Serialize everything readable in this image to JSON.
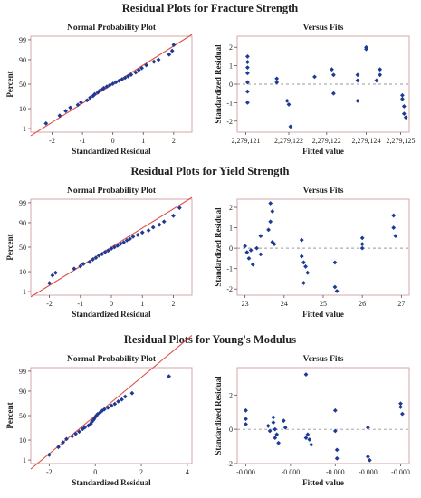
{
  "chart_data": [
    {
      "section_title": "Residual Plots for Fracture Strength",
      "panels": [
        {
          "type": "scatter",
          "kind": "probability",
          "title": "Normal Probability Plot",
          "xlabel": "Standardized Residual",
          "ylabel": "Percent",
          "xlim": [
            -2.7,
            2.6
          ],
          "xticks": [
            -2,
            -1,
            0,
            1,
            2
          ],
          "xtick_labels": [
            "-2",
            "-1",
            "0",
            "1",
            "2"
          ],
          "yticks": [
            1,
            10,
            50,
            90,
            99
          ],
          "ytick_labels": [
            "1",
            "10",
            "50",
            "90",
            "99"
          ],
          "line": {
            "x0": -2.7,
            "x1": 2.6
          },
          "points": [
            {
              "x": -2.2,
              "y": 2
            },
            {
              "x": -1.75,
              "y": 5
            },
            {
              "x": -1.55,
              "y": 8
            },
            {
              "x": -1.4,
              "y": 11
            },
            {
              "x": -1.15,
              "y": 14
            },
            {
              "x": -1.05,
              "y": 17
            },
            {
              "x": -0.85,
              "y": 20
            },
            {
              "x": -0.75,
              "y": 24
            },
            {
              "x": -0.65,
              "y": 27
            },
            {
              "x": -0.6,
              "y": 30
            },
            {
              "x": -0.5,
              "y": 33
            },
            {
              "x": -0.45,
              "y": 36
            },
            {
              "x": -0.35,
              "y": 39
            },
            {
              "x": -0.3,
              "y": 42
            },
            {
              "x": -0.2,
              "y": 45
            },
            {
              "x": -0.1,
              "y": 48
            },
            {
              "x": 0.0,
              "y": 51
            },
            {
              "x": 0.1,
              "y": 54
            },
            {
              "x": 0.2,
              "y": 57
            },
            {
              "x": 0.3,
              "y": 60
            },
            {
              "x": 0.4,
              "y": 63
            },
            {
              "x": 0.5,
              "y": 66
            },
            {
              "x": 0.6,
              "y": 69
            },
            {
              "x": 0.75,
              "y": 73
            },
            {
              "x": 0.85,
              "y": 77
            },
            {
              "x": 0.95,
              "y": 80
            },
            {
              "x": 1.1,
              "y": 84
            },
            {
              "x": 1.35,
              "y": 88
            },
            {
              "x": 1.5,
              "y": 90
            },
            {
              "x": 1.85,
              "y": 94
            },
            {
              "x": 1.95,
              "y": 96
            },
            {
              "x": 2.0,
              "y": 98
            }
          ]
        },
        {
          "type": "scatter",
          "kind": "fits",
          "title": "Versus Fits",
          "xlabel": "Fitted value",
          "ylabel": "Standardized Residual",
          "xlim": [
            0,
            5
          ],
          "ylim": [
            -2.6,
            2.6
          ],
          "yticks": [
            -2,
            -1,
            0,
            1,
            2
          ],
          "ytick_labels": [
            "-2",
            "-1",
            "0",
            "1",
            "2"
          ],
          "xticks": [
            0.25,
            1.5,
            2.6,
            3.75,
            4.75
          ],
          "xtick_labels": [
            "2,279,121",
            "2,279,122",
            "2,279,122",
            "2,279,124",
            "2,279,125"
          ],
          "points": [
            {
              "x": 0.3,
              "y": 1.5
            },
            {
              "x": 0.3,
              "y": 1.2
            },
            {
              "x": 0.3,
              "y": 0.9
            },
            {
              "x": 0.3,
              "y": 0.6
            },
            {
              "x": 0.3,
              "y": 0.1
            },
            {
              "x": 0.3,
              "y": -0.4
            },
            {
              "x": 0.3,
              "y": -1.0
            },
            {
              "x": 1.15,
              "y": 0.3
            },
            {
              "x": 1.15,
              "y": 0.1
            },
            {
              "x": 1.45,
              "y": -0.9
            },
            {
              "x": 1.5,
              "y": -1.1
            },
            {
              "x": 1.55,
              "y": -2.3
            },
            {
              "x": 2.25,
              "y": 0.4
            },
            {
              "x": 2.75,
              "y": 0.8
            },
            {
              "x": 2.8,
              "y": 0.5
            },
            {
              "x": 2.8,
              "y": -0.5
            },
            {
              "x": 3.5,
              "y": 0.5
            },
            {
              "x": 3.5,
              "y": 0.2
            },
            {
              "x": 3.5,
              "y": -0.9
            },
            {
              "x": 3.75,
              "y": 2.0
            },
            {
              "x": 3.75,
              "y": 1.9
            },
            {
              "x": 4.15,
              "y": 0.8
            },
            {
              "x": 4.15,
              "y": 0.5
            },
            {
              "x": 4.05,
              "y": 0.2
            },
            {
              "x": 4.8,
              "y": -0.6
            },
            {
              "x": 4.8,
              "y": -0.8
            },
            {
              "x": 4.85,
              "y": -1.2
            },
            {
              "x": 4.85,
              "y": -1.6
            },
            {
              "x": 4.9,
              "y": -1.8
            }
          ]
        }
      ]
    },
    {
      "section_title": "Residual Plots for Yield Strength",
      "panels": [
        {
          "type": "scatter",
          "kind": "probability",
          "title": "Normal Probability Plot",
          "xlabel": "Standardized Residual",
          "ylabel": "Percent",
          "xlim": [
            -2.6,
            2.6
          ],
          "xticks": [
            -2,
            -1,
            0,
            1,
            2
          ],
          "xtick_labels": [
            "-2",
            "-1",
            "0",
            "1",
            "2"
          ],
          "yticks": [
            1,
            10,
            50,
            90,
            99
          ],
          "ytick_labels": [
            "1",
            "10",
            "50",
            "90",
            "99"
          ],
          "line": {
            "x0": -2.6,
            "x1": 2.6
          },
          "points": [
            {
              "x": -2.0,
              "y": 3
            },
            {
              "x": -1.9,
              "y": 7
            },
            {
              "x": -1.8,
              "y": 9
            },
            {
              "x": -1.2,
              "y": 13
            },
            {
              "x": -1.0,
              "y": 16
            },
            {
              "x": -0.9,
              "y": 19
            },
            {
              "x": -0.7,
              "y": 22
            },
            {
              "x": -0.6,
              "y": 26
            },
            {
              "x": -0.5,
              "y": 29
            },
            {
              "x": -0.4,
              "y": 33
            },
            {
              "x": -0.3,
              "y": 36
            },
            {
              "x": -0.2,
              "y": 40
            },
            {
              "x": -0.1,
              "y": 43
            },
            {
              "x": 0.0,
              "y": 47
            },
            {
              "x": 0.1,
              "y": 50
            },
            {
              "x": 0.2,
              "y": 53
            },
            {
              "x": 0.3,
              "y": 57
            },
            {
              "x": 0.4,
              "y": 60
            },
            {
              "x": 0.5,
              "y": 64
            },
            {
              "x": 0.6,
              "y": 67
            },
            {
              "x": 0.7,
              "y": 71
            },
            {
              "x": 0.85,
              "y": 74
            },
            {
              "x": 1.0,
              "y": 78
            },
            {
              "x": 1.2,
              "y": 81
            },
            {
              "x": 1.35,
              "y": 85
            },
            {
              "x": 1.55,
              "y": 88
            },
            {
              "x": 1.7,
              "y": 91
            },
            {
              "x": 2.0,
              "y": 95
            },
            {
              "x": 2.2,
              "y": 98
            }
          ]
        },
        {
          "type": "scatter",
          "kind": "fits",
          "title": "Versus Fits",
          "xlabel": "Fitted value",
          "ylabel": "Standardized Residual",
          "xlim": [
            22.8,
            27.2
          ],
          "ylim": [
            -2.3,
            2.4
          ],
          "yticks": [
            -2,
            -1,
            0,
            1,
            2
          ],
          "ytick_labels": [
            "-2",
            "-1",
            "0",
            "1",
            "2"
          ],
          "xticks": [
            23,
            24,
            25,
            26,
            27
          ],
          "xtick_labels": [
            "23",
            "24",
            "25",
            "26",
            "27"
          ],
          "points": [
            {
              "x": 23.0,
              "y": 0.1
            },
            {
              "x": 23.05,
              "y": -0.2
            },
            {
              "x": 23.1,
              "y": -0.5
            },
            {
              "x": 23.15,
              "y": -0.1
            },
            {
              "x": 23.2,
              "y": -0.8
            },
            {
              "x": 23.3,
              "y": 0.0
            },
            {
              "x": 23.4,
              "y": -0.3
            },
            {
              "x": 23.4,
              "y": 0.6
            },
            {
              "x": 23.6,
              "y": 0.9
            },
            {
              "x": 23.65,
              "y": 1.3
            },
            {
              "x": 23.65,
              "y": 2.2
            },
            {
              "x": 23.7,
              "y": 1.8
            },
            {
              "x": 23.7,
              "y": 0.3
            },
            {
              "x": 23.75,
              "y": 0.2
            },
            {
              "x": 24.45,
              "y": 0.4
            },
            {
              "x": 24.45,
              "y": -0.4
            },
            {
              "x": 24.5,
              "y": -0.7
            },
            {
              "x": 24.55,
              "y": -0.9
            },
            {
              "x": 24.6,
              "y": -1.2
            },
            {
              "x": 24.5,
              "y": -1.7
            },
            {
              "x": 25.3,
              "y": -0.7
            },
            {
              "x": 25.3,
              "y": -1.9
            },
            {
              "x": 25.35,
              "y": -2.1
            },
            {
              "x": 26.0,
              "y": 0.5
            },
            {
              "x": 26.0,
              "y": 0.2
            },
            {
              "x": 26.0,
              "y": 0.0
            },
            {
              "x": 26.8,
              "y": 1.6
            },
            {
              "x": 26.8,
              "y": 1.0
            },
            {
              "x": 26.85,
              "y": 0.6
            }
          ]
        }
      ]
    },
    {
      "section_title": "Residual Plots for Young's Modulus",
      "panels": [
        {
          "type": "scatter",
          "kind": "probability",
          "title": "Normal Probability Plot",
          "xlabel": "Standardized Residual",
          "ylabel": "Percent",
          "xlim": [
            -2.8,
            4.2
          ],
          "xticks": [
            -2,
            0,
            2,
            4
          ],
          "xtick_labels": [
            "-2",
            "0",
            "2",
            "4"
          ],
          "yticks": [
            1,
            10,
            50,
            90,
            99
          ],
          "ytick_labels": [
            "1",
            "10",
            "50",
            "90",
            "99"
          ],
          "line": {
            "x0": -2.8,
            "x1": 4.2
          },
          "points": [
            {
              "x": -2.0,
              "y": 2
            },
            {
              "x": -1.6,
              "y": 5
            },
            {
              "x": -1.4,
              "y": 8
            },
            {
              "x": -1.25,
              "y": 11
            },
            {
              "x": -1.0,
              "y": 14
            },
            {
              "x": -0.85,
              "y": 17
            },
            {
              "x": -0.7,
              "y": 20
            },
            {
              "x": -0.55,
              "y": 24
            },
            {
              "x": -0.45,
              "y": 27
            },
            {
              "x": -0.3,
              "y": 30
            },
            {
              "x": -0.2,
              "y": 33
            },
            {
              "x": -0.15,
              "y": 37
            },
            {
              "x": -0.1,
              "y": 40
            },
            {
              "x": -0.05,
              "y": 43
            },
            {
              "x": 0.0,
              "y": 47
            },
            {
              "x": 0.05,
              "y": 50
            },
            {
              "x": 0.1,
              "y": 53
            },
            {
              "x": 0.2,
              "y": 56
            },
            {
              "x": 0.3,
              "y": 60
            },
            {
              "x": 0.4,
              "y": 63
            },
            {
              "x": 0.55,
              "y": 66
            },
            {
              "x": 0.7,
              "y": 70
            },
            {
              "x": 0.85,
              "y": 73
            },
            {
              "x": 1.0,
              "y": 77
            },
            {
              "x": 1.15,
              "y": 80
            },
            {
              "x": 1.3,
              "y": 84
            },
            {
              "x": 1.6,
              "y": 88
            },
            {
              "x": 3.2,
              "y": 98
            }
          ]
        },
        {
          "type": "scatter",
          "kind": "fits",
          "title": "Versus Fits",
          "xlabel": "Fitted value",
          "ylabel": "Standardized Residual",
          "xlim": [
            0,
            5
          ],
          "ylim": [
            -2.0,
            3.6
          ],
          "yticks": [
            -2,
            0,
            2
          ],
          "ytick_labels": [
            "-2",
            "0",
            "2"
          ],
          "xticks": [
            0.25,
            1.55,
            2.85,
            3.8,
            4.75
          ],
          "xtick_labels": [
            "-0.000",
            "-0.000",
            "-0.000",
            "-0.000",
            "-0.000"
          ],
          "points": [
            {
              "x": 0.25,
              "y": 1.1
            },
            {
              "x": 0.25,
              "y": 0.6
            },
            {
              "x": 0.25,
              "y": 0.3
            },
            {
              "x": 0.9,
              "y": 0.2
            },
            {
              "x": 0.95,
              "y": -0.1
            },
            {
              "x": 1.05,
              "y": 0.7
            },
            {
              "x": 1.05,
              "y": 0.4
            },
            {
              "x": 1.1,
              "y": 0.0
            },
            {
              "x": 1.15,
              "y": -0.3
            },
            {
              "x": 1.1,
              "y": -0.5
            },
            {
              "x": 1.2,
              "y": -0.8
            },
            {
              "x": 1.35,
              "y": 0.5
            },
            {
              "x": 1.4,
              "y": 0.1
            },
            {
              "x": 2.0,
              "y": 3.2
            },
            {
              "x": 2.05,
              "y": -0.3
            },
            {
              "x": 2.1,
              "y": -0.6
            },
            {
              "x": 2.15,
              "y": -0.9
            },
            {
              "x": 2.0,
              "y": -0.5
            },
            {
              "x": 2.85,
              "y": 1.1
            },
            {
              "x": 2.85,
              "y": -0.1
            },
            {
              "x": 2.9,
              "y": -1.2
            },
            {
              "x": 2.9,
              "y": -1.7
            },
            {
              "x": 3.8,
              "y": 0.1
            },
            {
              "x": 3.8,
              "y": -1.6
            },
            {
              "x": 3.85,
              "y": -1.8
            },
            {
              "x": 4.75,
              "y": 1.5
            },
            {
              "x": 4.75,
              "y": 1.3
            },
            {
              "x": 4.8,
              "y": 0.9
            }
          ]
        }
      ]
    }
  ],
  "colors": {
    "point": "#1f3a93",
    "fit_line": "#e0504a",
    "frame": "#d9a7a7",
    "zero_line": "#999999"
  }
}
